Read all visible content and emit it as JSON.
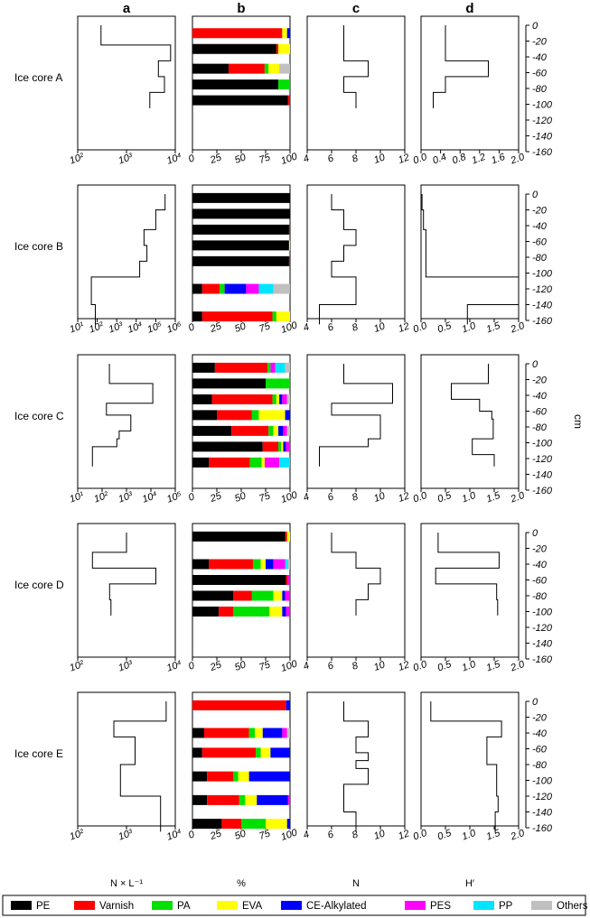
{
  "column_headers": [
    "a",
    "b",
    "c",
    "d"
  ],
  "x_axis_labels": [
    "N × L⁻¹",
    "%",
    "N",
    "H′"
  ],
  "y_axis_label": "cm",
  "y_ticks": [
    0,
    -20,
    -40,
    -60,
    -80,
    -100,
    -120,
    -140,
    -160
  ],
  "legend": [
    {
      "name": "PE",
      "color": "#000000"
    },
    {
      "name": "Varnish",
      "color": "#ff0000"
    },
    {
      "name": "PA",
      "color": "#00e000"
    },
    {
      "name": "EVA",
      "color": "#ffff00"
    },
    {
      "name": "CE-Alkylated",
      "color": "#0000ff"
    },
    {
      "name": "PES",
      "color": "#ff00ff"
    },
    {
      "name": "PP",
      "color": "#00e5ff"
    },
    {
      "name": "Others",
      "color": "#c0c0c0"
    }
  ],
  "chart_data": [
    {
      "core": "Ice core A",
      "a": {
        "type": "line",
        "scale": "log",
        "xlim": [
          100,
          10000
        ],
        "xticks": [
          100,
          1000,
          10000
        ],
        "xtick_labels": [
          "10²",
          "10³",
          "10⁴"
        ],
        "steps": [
          [
            0,
            -25,
            300
          ],
          [
            -25,
            -45,
            8000
          ],
          [
            -45,
            -65,
            4500
          ],
          [
            -65,
            -85,
            6000
          ],
          [
            -85,
            -105,
            3000
          ]
        ]
      },
      "b": {
        "type": "bar",
        "xlim": [
          0,
          100
        ],
        "xticks": [
          0,
          25,
          50,
          75,
          100
        ],
        "bars": [
          {
            "depth": -10,
            "values": {
              "Varnish": 92,
              "EVA": 5,
              "CE-Alkylated": 3
            }
          },
          {
            "depth": -30,
            "values": {
              "PE": 86,
              "Varnish": 2,
              "EVA": 12
            }
          },
          {
            "depth": -55,
            "values": {
              "PE": 37,
              "Varnish": 37,
              "PA": 4,
              "EVA": 11,
              "Others": 11
            }
          },
          {
            "depth": -75,
            "values": {
              "PE": 88,
              "PA": 12
            }
          },
          {
            "depth": -95,
            "values": {
              "PE": 98,
              "Varnish": 2
            }
          }
        ]
      },
      "c": {
        "type": "line",
        "xlim": [
          4,
          12
        ],
        "xticks": [
          4,
          6,
          8,
          10,
          12
        ],
        "steps": [
          [
            0,
            -45,
            7
          ],
          [
            -45,
            -65,
            9
          ],
          [
            -65,
            -85,
            7
          ],
          [
            -85,
            -105,
            8
          ]
        ]
      },
      "d": {
        "type": "line",
        "xlim": [
          0,
          2
        ],
        "xticks": [
          0,
          0.4,
          0.8,
          1.2,
          1.6,
          2.0
        ],
        "xtick_labels": [
          "0.0",
          "0.4",
          "0.8",
          "1.2",
          "1.6",
          "2.0"
        ],
        "steps": [
          [
            0,
            -45,
            0.5
          ],
          [
            -45,
            -65,
            1.38
          ],
          [
            -65,
            -85,
            0.5
          ],
          [
            -85,
            -105,
            0.25
          ]
        ]
      }
    },
    {
      "core": "Ice core B",
      "a": {
        "type": "line",
        "scale": "log",
        "xlim": [
          10,
          1000000
        ],
        "xticks": [
          10,
          100,
          1000,
          10000,
          100000,
          1000000
        ],
        "xtick_labels": [
          "10¹",
          "10²",
          "10³",
          "10⁴",
          "10⁵",
          "10⁶"
        ],
        "steps": [
          [
            0,
            -20,
            300000
          ],
          [
            -20,
            -45,
            100000
          ],
          [
            -45,
            -65,
            25000
          ],
          [
            -65,
            -85,
            35000
          ],
          [
            -85,
            -105,
            15000
          ],
          [
            -105,
            -140,
            50
          ],
          [
            -140,
            -165,
            80
          ]
        ]
      },
      "b": {
        "type": "bar",
        "xlim": [
          0,
          100
        ],
        "xticks": [
          0,
          25,
          50,
          75,
          100
        ],
        "bars": [
          {
            "depth": -5,
            "values": {
              "PE": 100
            }
          },
          {
            "depth": -25,
            "values": {
              "PE": 100
            }
          },
          {
            "depth": -45,
            "values": {
              "PE": 99,
              "Varnish": 1
            }
          },
          {
            "depth": -65,
            "values": {
              "PE": 99,
              "EVA": 1
            }
          },
          {
            "depth": -85,
            "values": {
              "PE": 99,
              "Varnish": 1
            }
          },
          {
            "depth": -120,
            "values": {
              "PE": 10,
              "Varnish": 18,
              "PA": 5,
              "CE-Alkylated": 22,
              "PES": 13,
              "PP": 15,
              "Others": 17
            }
          },
          {
            "depth": -155,
            "values": {
              "PE": 10,
              "Varnish": 72,
              "PA": 4,
              "EVA": 14
            }
          }
        ]
      },
      "c": {
        "type": "line",
        "xlim": [
          4,
          12
        ],
        "xticks": [
          4,
          6,
          8,
          10,
          12
        ],
        "steps": [
          [
            0,
            -20,
            6
          ],
          [
            -20,
            -45,
            7
          ],
          [
            -45,
            -65,
            8
          ],
          [
            -65,
            -85,
            7
          ],
          [
            -85,
            -105,
            6
          ],
          [
            -105,
            -140,
            8
          ],
          [
            -140,
            -165,
            5
          ]
        ]
      },
      "d": {
        "type": "line",
        "xlim": [
          0,
          2
        ],
        "xticks": [
          0,
          0.5,
          1.0,
          1.5,
          2.0
        ],
        "xtick_labels": [
          "0.0",
          "0.5",
          "1.0",
          "1.5",
          "2.0"
        ],
        "steps": [
          [
            0,
            -20,
            0.02
          ],
          [
            -20,
            -45,
            0.05
          ],
          [
            -45,
            -105,
            0.1
          ],
          [
            -105,
            -140,
            2.0
          ],
          [
            -140,
            -165,
            0.95
          ]
        ]
      }
    },
    {
      "core": "Ice core C",
      "a": {
        "type": "line",
        "scale": "log",
        "xlim": [
          10,
          100000
        ],
        "xticks": [
          10,
          100,
          1000,
          10000,
          100000
        ],
        "xtick_labels": [
          "10¹",
          "10²",
          "10³",
          "10⁴",
          "10⁵"
        ],
        "steps": [
          [
            0,
            -25,
            200
          ],
          [
            -25,
            -50,
            12000
          ],
          [
            -50,
            -65,
            150
          ],
          [
            -65,
            -85,
            1500
          ],
          [
            -85,
            -95,
            500
          ],
          [
            -95,
            -105,
            400
          ],
          [
            -105,
            -130,
            40
          ]
        ]
      },
      "b": {
        "type": "bar",
        "xlim": [
          0,
          100
        ],
        "xticks": [
          0,
          25,
          50,
          75,
          100
        ],
        "bars": [
          {
            "depth": -5,
            "values": {
              "PE": 23,
              "Varnish": 54,
              "PA": 3,
              "PES": 5,
              "PP": 10,
              "Others": 5
            }
          },
          {
            "depth": -25,
            "values": {
              "PE": 75,
              "PA": 25
            }
          },
          {
            "depth": -45,
            "values": {
              "PE": 20,
              "Varnish": 62,
              "PA": 4,
              "EVA": 3,
              "CE-Alkylated": 3,
              "PES": 5,
              "Others": 3
            }
          },
          {
            "depth": -65,
            "values": {
              "PE": 25,
              "Varnish": 36,
              "PA": 7,
              "EVA": 27,
              "CE-Alkylated": 5
            }
          },
          {
            "depth": -85,
            "values": {
              "PE": 40,
              "Varnish": 38,
              "PA": 5,
              "EVA": 5,
              "CE-Alkylated": 5,
              "PES": 4,
              "Others": 3
            }
          },
          {
            "depth": -105,
            "values": {
              "PE": 72,
              "Varnish": 16,
              "PA": 3,
              "EVA": 2,
              "CE-Alkylated": 3,
              "PES": 4
            }
          },
          {
            "depth": -125,
            "values": {
              "PE": 17,
              "Varnish": 42,
              "PA": 12,
              "EVA": 3,
              "PES": 15,
              "PP": 11
            }
          }
        ]
      },
      "c": {
        "type": "line",
        "xlim": [
          4,
          12
        ],
        "xticks": [
          4,
          6,
          8,
          10,
          12
        ],
        "steps": [
          [
            0,
            -25,
            7
          ],
          [
            -25,
            -50,
            11
          ],
          [
            -50,
            -65,
            6
          ],
          [
            -65,
            -95,
            10
          ],
          [
            -95,
            -105,
            9
          ],
          [
            -105,
            -130,
            5
          ]
        ]
      },
      "d": {
        "type": "line",
        "xlim": [
          0,
          2
        ],
        "xticks": [
          0,
          0.5,
          1.0,
          1.5,
          2.0
        ],
        "xtick_labels": [
          "0.0",
          "0.5",
          "1.0",
          "1.5",
          "2.0"
        ],
        "steps": [
          [
            0,
            -25,
            1.38
          ],
          [
            -25,
            -45,
            0.62
          ],
          [
            -45,
            -60,
            1.2
          ],
          [
            -60,
            -70,
            1.45
          ],
          [
            -70,
            -95,
            1.48
          ],
          [
            -95,
            -115,
            1.05
          ],
          [
            -115,
            -130,
            1.5
          ]
        ]
      }
    },
    {
      "core": "Ice core D",
      "a": {
        "type": "line",
        "scale": "log",
        "xlim": [
          100,
          10000
        ],
        "xticks": [
          100,
          1000,
          10000
        ],
        "xtick_labels": [
          "10²",
          "10³",
          "10⁴"
        ],
        "steps": [
          [
            0,
            -25,
            1000
          ],
          [
            -25,
            -45,
            200
          ],
          [
            -45,
            -65,
            4000
          ],
          [
            -65,
            -85,
            450
          ],
          [
            -85,
            -105,
            480
          ]
        ]
      },
      "b": {
        "type": "bar",
        "xlim": [
          0,
          100
        ],
        "xticks": [
          0,
          25,
          50,
          75,
          100
        ],
        "bars": [
          {
            "depth": -5,
            "values": {
              "PE": 95,
              "Varnish": 2,
              "EVA": 3
            }
          },
          {
            "depth": -40,
            "values": {
              "PE": 17,
              "Varnish": 45,
              "PA": 8,
              "EVA": 5,
              "CE-Alkylated": 8,
              "PES": 12,
              "PP": 3,
              "Others": 2
            }
          },
          {
            "depth": -60,
            "values": {
              "PE": 96,
              "Varnish": 2,
              "PES": 2
            }
          },
          {
            "depth": -80,
            "values": {
              "PE": 42,
              "Varnish": 19,
              "PA": 22,
              "EVA": 9,
              "CE-Alkylated": 3,
              "PES": 5
            }
          },
          {
            "depth": -100,
            "values": {
              "PE": 27,
              "Varnish": 15,
              "PA": 37,
              "EVA": 13,
              "PES": 4,
              "CE-Alkylated": 4
            }
          }
        ]
      },
      "c": {
        "type": "line",
        "xlim": [
          4,
          12
        ],
        "xticks": [
          4,
          6,
          8,
          10,
          12
        ],
        "steps": [
          [
            0,
            -25,
            6
          ],
          [
            -25,
            -45,
            8
          ],
          [
            -45,
            -65,
            10
          ],
          [
            -65,
            -85,
            9
          ],
          [
            -85,
            -105,
            8
          ]
        ]
      },
      "d": {
        "type": "line",
        "xlim": [
          0,
          2
        ],
        "xticks": [
          0,
          0.5,
          1.0,
          1.5,
          2.0
        ],
        "xtick_labels": [
          "0.0",
          "0.5",
          "1.0",
          "1.5",
          "2.0"
        ],
        "steps": [
          [
            0,
            -25,
            0.35
          ],
          [
            -25,
            -45,
            1.6
          ],
          [
            -45,
            -65,
            0.3
          ],
          [
            -65,
            -85,
            1.55
          ],
          [
            -85,
            -105,
            1.57
          ]
        ]
      }
    },
    {
      "core": "Ice core E",
      "a": {
        "type": "line",
        "scale": "log",
        "xlim": [
          100,
          10000
        ],
        "xticks": [
          100,
          1000,
          10000
        ],
        "xtick_labels": [
          "10²",
          "10³",
          "10⁴"
        ],
        "steps": [
          [
            0,
            -25,
            6500
          ],
          [
            -25,
            -45,
            550
          ],
          [
            -45,
            -80,
            1500
          ],
          [
            -80,
            -120,
            750
          ],
          [
            -120,
            -165,
            5000
          ]
        ]
      },
      "b": {
        "type": "bar",
        "xlim": [
          0,
          100
        ],
        "xticks": [
          0,
          25,
          50,
          75,
          100
        ],
        "bars": [
          {
            "depth": -5,
            "values": {
              "Varnish": 96,
              "CE-Alkylated": 4
            }
          },
          {
            "depth": -40,
            "values": {
              "PE": 12,
              "Varnish": 46,
              "PA": 6,
              "EVA": 8,
              "CE-Alkylated": 20,
              "PES": 5,
              "Others": 3
            }
          },
          {
            "depth": -65,
            "values": {
              "PE": 10,
              "Varnish": 55,
              "PA": 5,
              "EVA": 10,
              "CE-Alkylated": 20
            }
          },
          {
            "depth": -95,
            "values": {
              "PE": 15,
              "Varnish": 27,
              "PA": 5,
              "EVA": 11,
              "CE-Alkylated": 42
            }
          },
          {
            "depth": -125,
            "values": {
              "PE": 15,
              "Varnish": 33,
              "PA": 6,
              "EVA": 12,
              "CE-Alkylated": 32,
              "PES": 2
            }
          },
          {
            "depth": -155,
            "values": {
              "PE": 30,
              "Varnish": 20,
              "PA": 25,
              "EVA": 22,
              "CE-Alkylated": 3
            }
          }
        ]
      },
      "c": {
        "type": "line",
        "xlim": [
          4,
          12
        ],
        "xticks": [
          4,
          6,
          8,
          10,
          12
        ],
        "steps": [
          [
            0,
            -25,
            7
          ],
          [
            -25,
            -45,
            9
          ],
          [
            -45,
            -65,
            8
          ],
          [
            -65,
            -75,
            9
          ],
          [
            -75,
            -85,
            8
          ],
          [
            -85,
            -105,
            9
          ],
          [
            -105,
            -140,
            7
          ],
          [
            -140,
            -165,
            8
          ]
        ]
      },
      "d": {
        "type": "line",
        "xlim": [
          0,
          2
        ],
        "xticks": [
          0,
          0.5,
          1.0,
          1.5,
          2.0
        ],
        "xtick_labels": [
          "0.0",
          "0.5",
          "1.0",
          "1.5",
          "2.0"
        ],
        "steps": [
          [
            0,
            -25,
            0.2
          ],
          [
            -25,
            -45,
            1.65
          ],
          [
            -45,
            -80,
            1.35
          ],
          [
            -80,
            -120,
            1.55
          ],
          [
            -120,
            -140,
            1.58
          ],
          [
            -140,
            -165,
            1.52
          ]
        ]
      }
    }
  ]
}
